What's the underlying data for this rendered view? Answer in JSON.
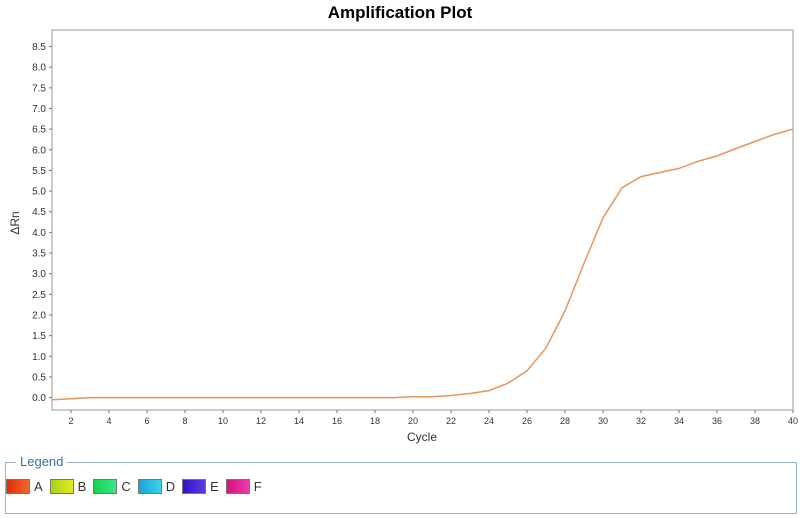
{
  "chart_data": {
    "type": "line",
    "title": "Amplification Plot",
    "xlabel": "Cycle",
    "ylabel": "ΔRn",
    "xlim": [
      1,
      40
    ],
    "ylim": [
      -0.3,
      8.9
    ],
    "xticks": [
      2,
      4,
      6,
      8,
      10,
      12,
      14,
      16,
      18,
      20,
      22,
      24,
      26,
      28,
      30,
      32,
      34,
      36,
      38,
      40
    ],
    "yticks": [
      0.0,
      0.5,
      1.0,
      1.5,
      2.0,
      2.5,
      3.0,
      3.5,
      4.0,
      4.5,
      5.0,
      5.5,
      6.0,
      6.5,
      7.0,
      7.5,
      8.0,
      8.5
    ],
    "grid": true,
    "series": [
      {
        "color": "#e8955a",
        "x": [
          1,
          2,
          3,
          4,
          5,
          6,
          7,
          8,
          9,
          10,
          11,
          12,
          13,
          14,
          15,
          16,
          17,
          18,
          19,
          20,
          21,
          22,
          23,
          24,
          25,
          26,
          27,
          28,
          29,
          30,
          31,
          32,
          33,
          34,
          35,
          36,
          37,
          38,
          39,
          40
        ],
        "y": [
          -0.05,
          -0.03,
          0.0,
          0.0,
          0.0,
          0.0,
          0.0,
          0.0,
          0.0,
          0.0,
          0.0,
          0.0,
          0.0,
          0.0,
          0.0,
          0.0,
          0.0,
          0.0,
          0.0,
          0.02,
          0.02,
          0.05,
          0.1,
          0.17,
          0.35,
          0.65,
          1.2,
          2.1,
          3.25,
          4.35,
          5.08,
          5.35,
          5.45,
          5.55,
          5.72,
          5.85,
          6.03,
          6.2,
          6.37,
          6.5
        ]
      }
    ]
  },
  "legend": {
    "title": "Legend",
    "items": [
      {
        "label": "A",
        "color_start": "#e32a0c",
        "color_end": "#f06a2a"
      },
      {
        "label": "B",
        "color_start": "#a6d40f",
        "color_end": "#e6e92a"
      },
      {
        "label": "C",
        "color_start": "#18d24a",
        "color_end": "#3ae88a"
      },
      {
        "label": "D",
        "color_start": "#1aa6d8",
        "color_end": "#3cd1ea"
      },
      {
        "label": "E",
        "color_start": "#3312c8",
        "color_end": "#5a3be0"
      },
      {
        "label": "F",
        "color_start": "#d4127a",
        "color_end": "#ee3ab0"
      }
    ]
  }
}
